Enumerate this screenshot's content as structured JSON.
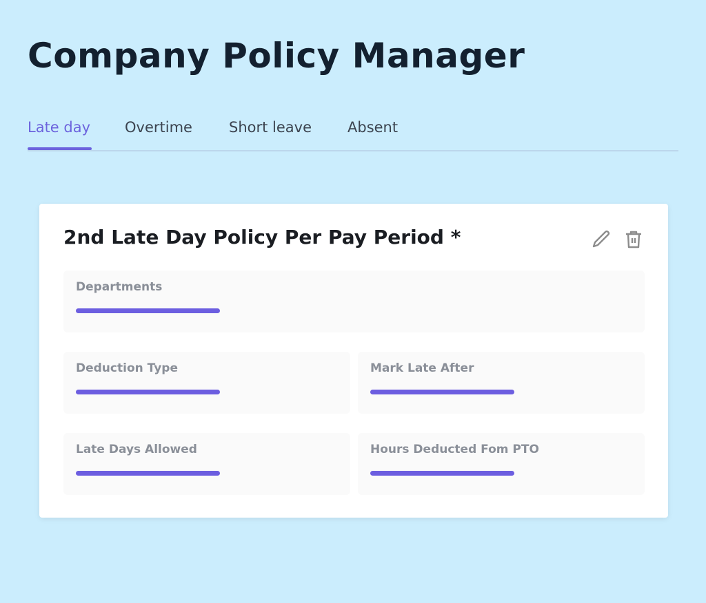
{
  "header": {
    "title": "Company Policy Manager"
  },
  "tabs": [
    {
      "label": "Late day",
      "active": true
    },
    {
      "label": "Overtime"
    },
    {
      "label": "Short leave"
    },
    {
      "label": "Absent"
    }
  ],
  "accent_color": "#6c63dd",
  "card": {
    "title": "2nd Late Day Policy Per Pay Period *",
    "actions": [
      "pencil-icon",
      "trash-icon"
    ],
    "fields": [
      {
        "label": "Departments"
      },
      {
        "label": "Deduction Type"
      },
      {
        "label": "Mark Late After"
      },
      {
        "label": "Late Days Allowed"
      },
      {
        "label": "Hours Deducted Fom PTO"
      }
    ]
  }
}
